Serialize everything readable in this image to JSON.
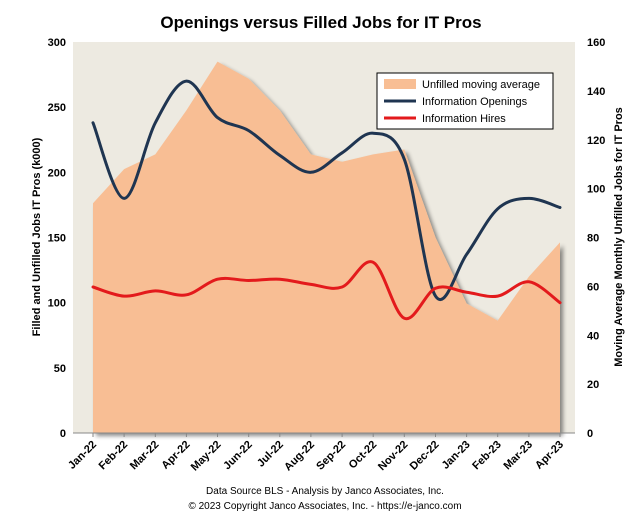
{
  "chart_data": {
    "type": "line",
    "title": "Openings versus Filled Jobs for IT Pros",
    "categories": [
      "Jan-22",
      "Feb-22",
      "Mar-22",
      "Apr-22",
      "May-22",
      "Jun-22",
      "Jul-22",
      "Aug-22",
      "Sep-22",
      "Oct-22",
      "Nov-22",
      "Dec-22",
      "Jan-23",
      "Feb-23",
      "Mar-23",
      "Apr-23"
    ],
    "ylabel_left": "Filled and Unfilled Jobs IT Pros (k000)",
    "ylabel_right": "Moving Average Monthly Unfilled Jobs for IT Pros",
    "ylim_left": [
      0,
      300
    ],
    "ylim_right": [
      0,
      160
    ],
    "yticks_left": [
      0,
      50,
      100,
      150,
      200,
      250,
      300
    ],
    "yticks_right": [
      0,
      20,
      40,
      60,
      80,
      100,
      120,
      140,
      160
    ],
    "grid": false,
    "legend_position": "top-right",
    "series": [
      {
        "name": "Unfilled moving average",
        "kind": "area",
        "axis": "right",
        "color": "#F8BE94",
        "values": [
          94,
          108,
          114,
          132,
          152,
          145,
          132,
          114,
          111,
          114,
          116,
          80,
          53,
          46,
          64,
          78
        ]
      },
      {
        "name": "Information Openings",
        "kind": "line",
        "axis": "left",
        "color": "#1F3551",
        "values": [
          238,
          180,
          238,
          270,
          242,
          232,
          213,
          200,
          215,
          230,
          210,
          105,
          137,
          172,
          180,
          173
        ]
      },
      {
        "name": "Information Hires",
        "kind": "line",
        "axis": "left",
        "color": "#E31A1C",
        "values": [
          112,
          105,
          109,
          106,
          118,
          117,
          118,
          114,
          112,
          131,
          88,
          111,
          108,
          105,
          116,
          100
        ]
      }
    ]
  },
  "footer": {
    "line1": "Data Source BLS - Analysis by Janco Associates, Inc.",
    "line2": "© 2023 Copyright Janco Associates, Inc. - https://e-janco.com"
  }
}
